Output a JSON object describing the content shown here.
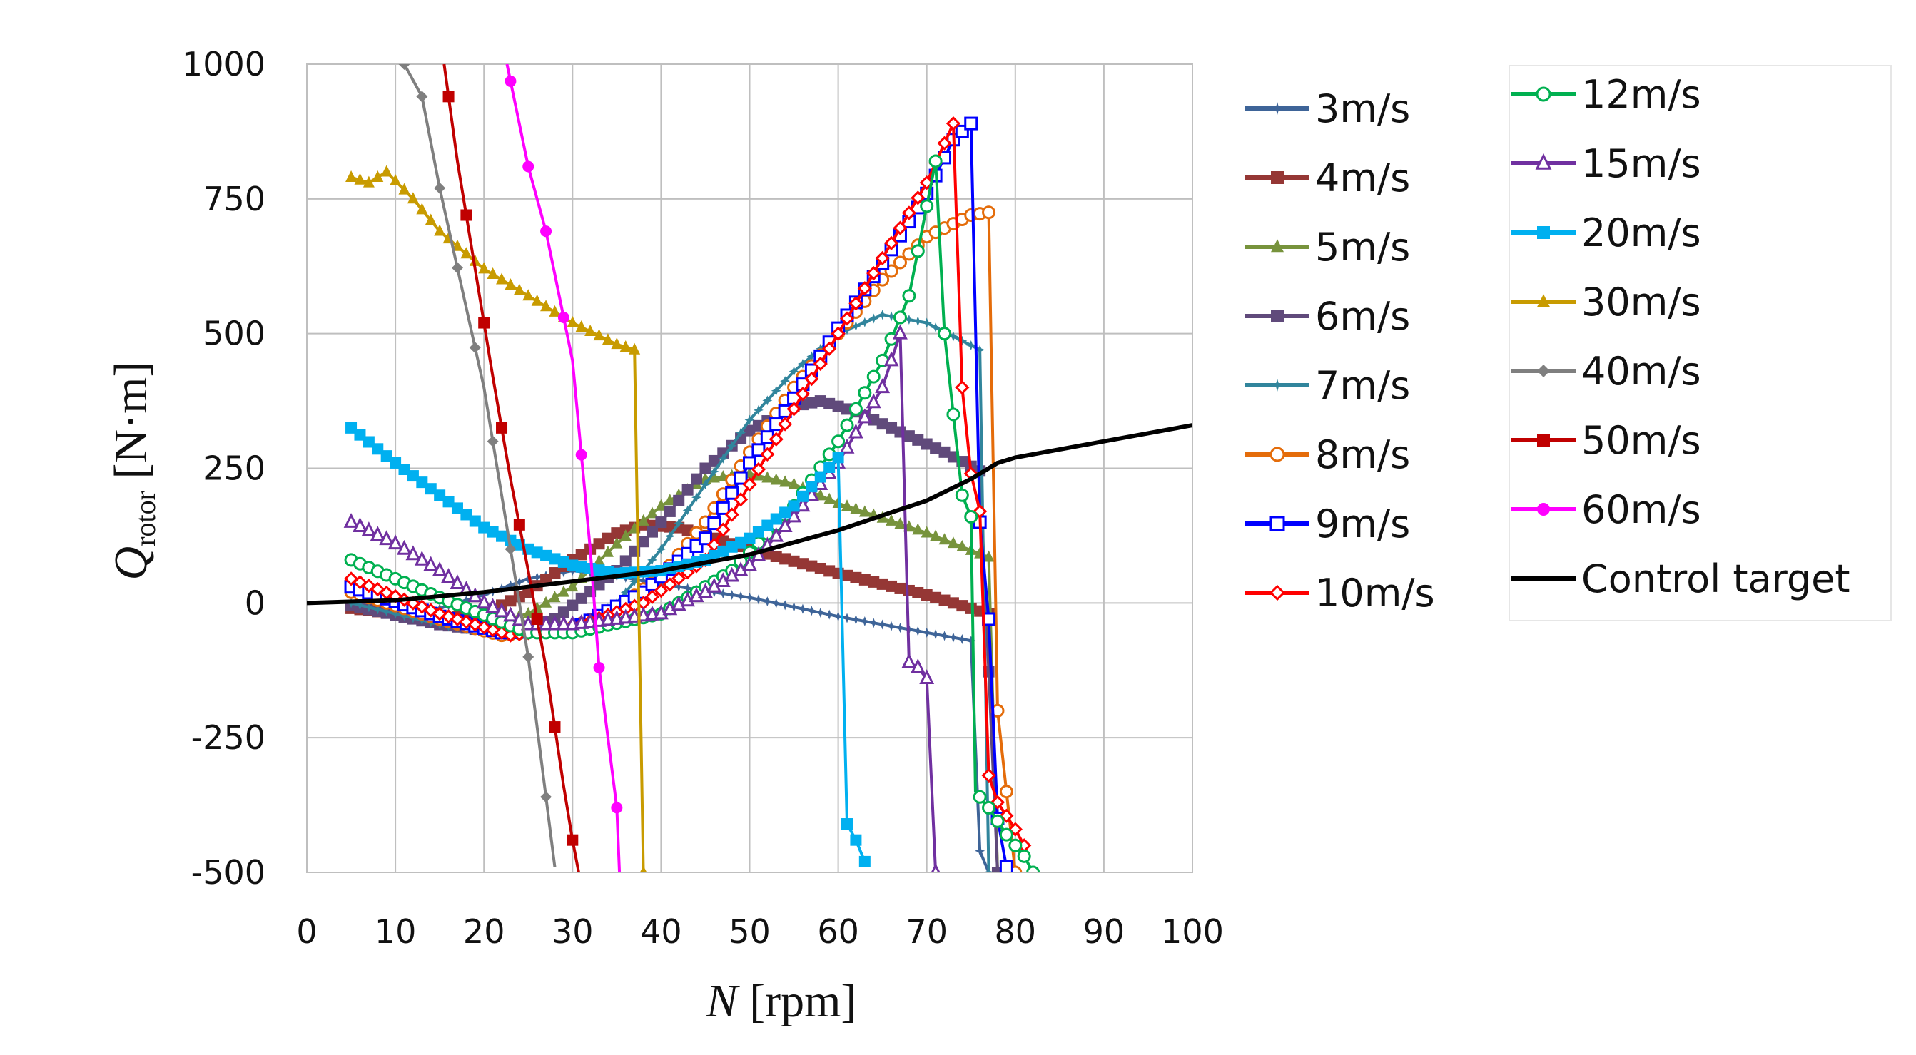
{
  "chart_data": {
    "type": "line",
    "xlabel_var": "N",
    "xlabel_unit": "[rpm]",
    "ylabel_var": "Q",
    "ylabel_sub": "rotor",
    "ylabel_unit": "[N·m]",
    "xlim": [
      0,
      100
    ],
    "ylim": [
      -500,
      1000
    ],
    "xticks": [
      0,
      10,
      20,
      30,
      40,
      50,
      60,
      70,
      80,
      90,
      100
    ],
    "yticks": [
      -500,
      -250,
      0,
      250,
      500,
      750,
      1000
    ],
    "grid": true,
    "legend_position": "right",
    "series": [
      {
        "name": "3m/s",
        "color": "#3E6498",
        "marker": "star",
        "points": [
          [
            5,
            -10
          ],
          [
            10,
            -15
          ],
          [
            15,
            -10
          ],
          [
            20,
            15
          ],
          [
            25,
            45
          ],
          [
            30,
            60
          ],
          [
            35,
            50
          ],
          [
            40,
            35
          ],
          [
            50,
            10
          ],
          [
            60,
            -25
          ],
          [
            70,
            -55
          ],
          [
            75,
            -70
          ],
          [
            76,
            -460
          ],
          [
            77,
            -500
          ]
        ]
      },
      {
        "name": "4m/s",
        "color": "#953735",
        "marker": "square-filled",
        "points": [
          [
            5,
            -10
          ],
          [
            10,
            -20
          ],
          [
            15,
            -30
          ],
          [
            20,
            -20
          ],
          [
            25,
            20
          ],
          [
            30,
            80
          ],
          [
            35,
            130
          ],
          [
            38,
            145
          ],
          [
            42,
            140
          ],
          [
            50,
            100
          ],
          [
            60,
            55
          ],
          [
            70,
            15
          ],
          [
            77,
            -20
          ],
          [
            78,
            -500
          ]
        ]
      },
      {
        "name": "5m/s",
        "color": "#77933C",
        "marker": "triangle-filled",
        "points": [
          [
            5,
            -5
          ],
          [
            15,
            -30
          ],
          [
            20,
            -40
          ],
          [
            25,
            -20
          ],
          [
            30,
            30
          ],
          [
            35,
            110
          ],
          [
            40,
            180
          ],
          [
            45,
            230
          ],
          [
            50,
            240
          ],
          [
            55,
            220
          ],
          [
            60,
            185
          ],
          [
            70,
            130
          ],
          [
            77,
            85
          ],
          [
            78,
            -500
          ]
        ]
      },
      {
        "name": "6m/s",
        "color": "#604A7B",
        "marker": "square-filled",
        "points": [
          [
            5,
            -5
          ],
          [
            15,
            -40
          ],
          [
            22,
            -55
          ],
          [
            28,
            -30
          ],
          [
            35,
            60
          ],
          [
            40,
            150
          ],
          [
            45,
            250
          ],
          [
            50,
            320
          ],
          [
            55,
            365
          ],
          [
            58,
            375
          ],
          [
            62,
            355
          ],
          [
            68,
            310
          ],
          [
            72,
            280
          ],
          [
            76,
            245
          ],
          [
            78,
            -500
          ]
        ]
      },
      {
        "name": "7m/s",
        "color": "#31859C",
        "marker": "star",
        "points": [
          [
            5,
            0
          ],
          [
            15,
            -40
          ],
          [
            22,
            -60
          ],
          [
            30,
            -50
          ],
          [
            35,
            0
          ],
          [
            40,
            100
          ],
          [
            45,
            220
          ],
          [
            50,
            340
          ],
          [
            55,
            430
          ],
          [
            60,
            500
          ],
          [
            65,
            535
          ],
          [
            70,
            520
          ],
          [
            76,
            470
          ],
          [
            77,
            -500
          ]
        ]
      },
      {
        "name": "8m/s",
        "color": "#E46C0A",
        "marker": "circle-open",
        "points": [
          [
            5,
            20
          ],
          [
            15,
            -30
          ],
          [
            22,
            -60
          ],
          [
            30,
            -45
          ],
          [
            35,
            -10
          ],
          [
            40,
            50
          ],
          [
            45,
            150
          ],
          [
            50,
            280
          ],
          [
            55,
            400
          ],
          [
            60,
            500
          ],
          [
            65,
            600
          ],
          [
            70,
            680
          ],
          [
            75,
            720
          ],
          [
            77,
            725
          ],
          [
            78,
            -200
          ],
          [
            80,
            -500
          ]
        ]
      },
      {
        "name": "9m/s",
        "color": "#0000FF",
        "marker": "square-open",
        "points": [
          [
            5,
            30
          ],
          [
            15,
            -25
          ],
          [
            22,
            -55
          ],
          [
            30,
            -50
          ],
          [
            38,
            20
          ],
          [
            45,
            120
          ],
          [
            50,
            260
          ],
          [
            55,
            380
          ],
          [
            60,
            510
          ],
          [
            65,
            630
          ],
          [
            70,
            760
          ],
          [
            73,
            860
          ],
          [
            75,
            890
          ],
          [
            76,
            150
          ],
          [
            77,
            -30
          ],
          [
            78,
            -400
          ],
          [
            79,
            -490
          ]
        ]
      },
      {
        "name": "10m/s",
        "color": "#FF0000",
        "marker": "diamond-open",
        "points": [
          [
            5,
            45
          ],
          [
            15,
            -20
          ],
          [
            23,
            -60
          ],
          [
            30,
            -45
          ],
          [
            38,
            0
          ],
          [
            45,
            80
          ],
          [
            50,
            220
          ],
          [
            55,
            360
          ],
          [
            60,
            500
          ],
          [
            65,
            640
          ],
          [
            70,
            780
          ],
          [
            73,
            890
          ],
          [
            74,
            400
          ],
          [
            75,
            240
          ],
          [
            76,
            170
          ],
          [
            77,
            -320
          ],
          [
            78,
            -370
          ],
          [
            80,
            -420
          ],
          [
            81,
            -450
          ]
        ]
      },
      {
        "name": "12m/s",
        "color": "#00B050",
        "marker": "circle-open",
        "points": [
          [
            5,
            80
          ],
          [
            15,
            10
          ],
          [
            25,
            -55
          ],
          [
            30,
            -55
          ],
          [
            40,
            -20
          ],
          [
            48,
            60
          ],
          [
            55,
            180
          ],
          [
            60,
            300
          ],
          [
            65,
            450
          ],
          [
            68,
            570
          ],
          [
            71,
            820
          ],
          [
            72,
            500
          ],
          [
            74,
            200
          ],
          [
            75,
            160
          ],
          [
            75.5,
            -350
          ],
          [
            77,
            -380
          ],
          [
            79,
            -430
          ],
          [
            81,
            -470
          ],
          [
            82,
            -500
          ]
        ]
      },
      {
        "name": "15m/s",
        "color": "#7030A0",
        "marker": "triangle-open",
        "points": [
          [
            5,
            150
          ],
          [
            10,
            110
          ],
          [
            15,
            60
          ],
          [
            20,
            0
          ],
          [
            25,
            -40
          ],
          [
            30,
            -40
          ],
          [
            40,
            -20
          ],
          [
            45,
            20
          ],
          [
            50,
            70
          ],
          [
            55,
            160
          ],
          [
            60,
            260
          ],
          [
            65,
            400
          ],
          [
            67,
            500
          ],
          [
            68,
            -110
          ],
          [
            69,
            -120
          ],
          [
            70,
            -140
          ],
          [
            71,
            -500
          ]
        ]
      },
      {
        "name": "20m/s",
        "color": "#00B0F0",
        "marker": "square-filled",
        "points": [
          [
            5,
            325
          ],
          [
            10,
            260
          ],
          [
            15,
            200
          ],
          [
            20,
            140
          ],
          [
            25,
            100
          ],
          [
            30,
            70
          ],
          [
            35,
            55
          ],
          [
            40,
            60
          ],
          [
            45,
            80
          ],
          [
            50,
            120
          ],
          [
            55,
            180
          ],
          [
            60,
            270
          ],
          [
            61,
            -410
          ],
          [
            62,
            -440
          ],
          [
            63,
            -480
          ]
        ]
      },
      {
        "name": "30m/s",
        "color": "#C89B00",
        "marker": "triangle-filled",
        "points": [
          [
            5,
            790
          ],
          [
            7,
            780
          ],
          [
            9,
            800
          ],
          [
            12,
            750
          ],
          [
            15,
            690
          ],
          [
            20,
            620
          ],
          [
            25,
            570
          ],
          [
            30,
            520
          ],
          [
            35,
            480
          ],
          [
            37,
            470
          ],
          [
            38,
            -500
          ]
        ]
      },
      {
        "name": "40m/s",
        "color": "#7F7F7F",
        "marker": "diamond-filled",
        "points": [
          [
            11,
            1000
          ],
          [
            13,
            940
          ],
          [
            15,
            770
          ],
          [
            20,
            400
          ],
          [
            25,
            -100
          ],
          [
            28,
            -490
          ]
        ]
      },
      {
        "name": "50m/s",
        "color": "#C00000",
        "marker": "square-filled",
        "points": [
          [
            15.5,
            1000
          ],
          [
            17,
            820
          ],
          [
            19,
            620
          ],
          [
            21,
            420
          ],
          [
            23,
            230
          ],
          [
            25,
            60
          ],
          [
            27,
            -120
          ],
          [
            29,
            -340
          ],
          [
            30,
            -440
          ],
          [
            30.7,
            -500
          ]
        ]
      },
      {
        "name": "60m/s",
        "color": "#FF00FF",
        "marker": "circle-filled",
        "points": [
          [
            22.6,
            1000
          ],
          [
            25,
            810
          ],
          [
            27,
            690
          ],
          [
            30,
            450
          ],
          [
            32,
            100
          ],
          [
            33,
            -120
          ],
          [
            35,
            -380
          ],
          [
            35.3,
            -500
          ]
        ]
      },
      {
        "name": "Control target",
        "color": "#000000",
        "marker": "none",
        "points": [
          [
            0,
            0
          ],
          [
            10,
            5
          ],
          [
            20,
            20
          ],
          [
            30,
            40
          ],
          [
            40,
            60
          ],
          [
            50,
            90
          ],
          [
            60,
            135
          ],
          [
            70,
            190
          ],
          [
            75,
            230
          ],
          [
            78,
            260
          ],
          [
            80,
            270
          ],
          [
            90,
            300
          ],
          [
            100,
            330
          ]
        ]
      }
    ]
  }
}
